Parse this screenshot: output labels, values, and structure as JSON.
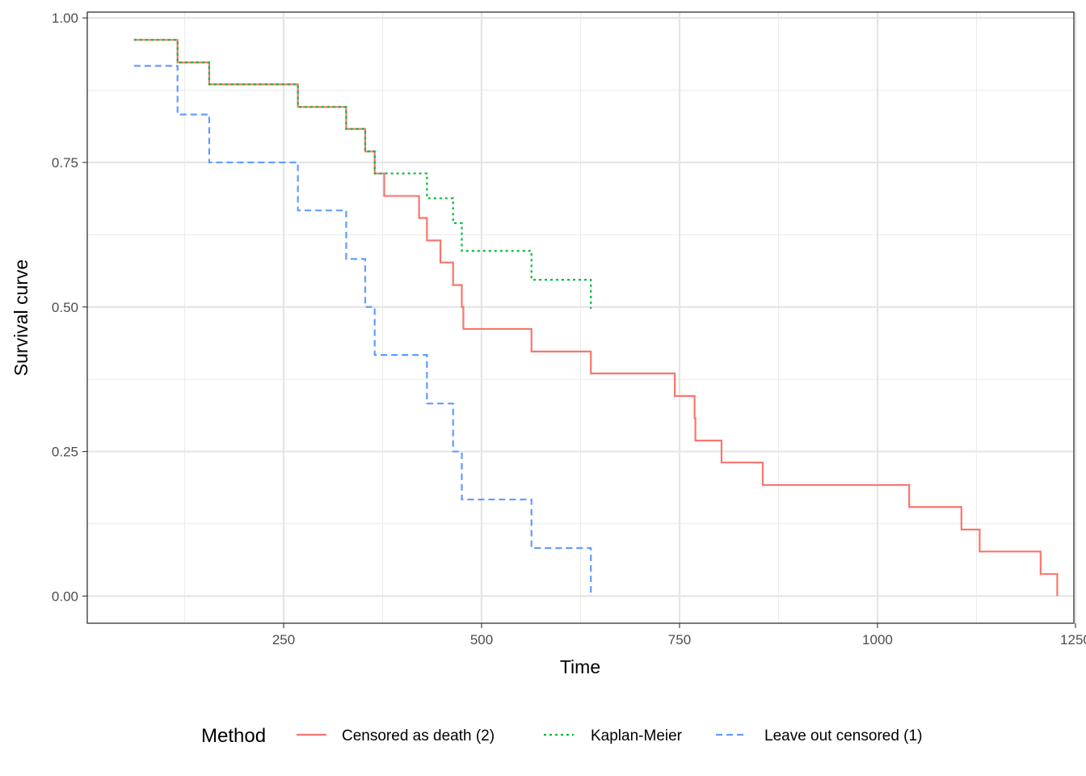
{
  "chart_data": {
    "type": "line",
    "step": true,
    "xlabel": "Time",
    "ylabel": "Survival curve",
    "xlim": [
      2,
      1248
    ],
    "ylim": [
      -0.047,
      1.01
    ],
    "x_ticks": [
      250,
      500,
      750,
      1000,
      1250
    ],
    "x_tick_labels": [
      "250",
      "500",
      "750",
      "1000",
      "1250"
    ],
    "y_ticks": [
      0,
      0.25,
      0.5,
      0.75,
      1.0
    ],
    "y_tick_labels": [
      "0.00",
      "0.25",
      "0.50",
      "0.75",
      "1.00"
    ],
    "grid": true,
    "legend": {
      "title": "Method",
      "position": "bottom",
      "entries": [
        "Censored as death (2)",
        "Kaplan-Meier",
        "Leave out censored (1)"
      ]
    },
    "series": [
      {
        "name": "Censored as death (2)",
        "color": "#F8766D",
        "dash": "solid",
        "x": [
          61,
          116,
          156,
          268,
          329,
          353,
          365,
          377,
          421,
          431,
          448,
          464,
          475,
          477,
          563,
          638,
          744,
          769,
          770,
          803,
          855,
          1040,
          1106,
          1129,
          1206,
          1227
        ],
        "y": [
          0.962,
          0.923,
          0.885,
          0.846,
          0.808,
          0.769,
          0.731,
          0.692,
          0.654,
          0.615,
          0.577,
          0.538,
          0.5,
          0.462,
          0.423,
          0.385,
          0.346,
          0.308,
          0.269,
          0.231,
          0.192,
          0.154,
          0.115,
          0.077,
          0.038,
          0.0
        ]
      },
      {
        "name": "Kaplan-Meier",
        "color": "#00BA38",
        "dash": "dotted",
        "x": [
          61,
          116,
          156,
          268,
          329,
          353,
          365,
          431,
          464,
          475,
          563,
          638
        ],
        "y": [
          0.962,
          0.923,
          0.885,
          0.846,
          0.808,
          0.769,
          0.731,
          0.688,
          0.645,
          0.597,
          0.547,
          0.497
        ]
      },
      {
        "name": "Leave out censored (1)",
        "color": "#619CFF",
        "dash": "dashed",
        "x": [
          61,
          116,
          156,
          268,
          329,
          353,
          365,
          431,
          464,
          475,
          563,
          638
        ],
        "y": [
          0.917,
          0.833,
          0.75,
          0.667,
          0.583,
          0.5,
          0.417,
          0.333,
          0.25,
          0.167,
          0.083,
          0.0
        ]
      }
    ]
  }
}
